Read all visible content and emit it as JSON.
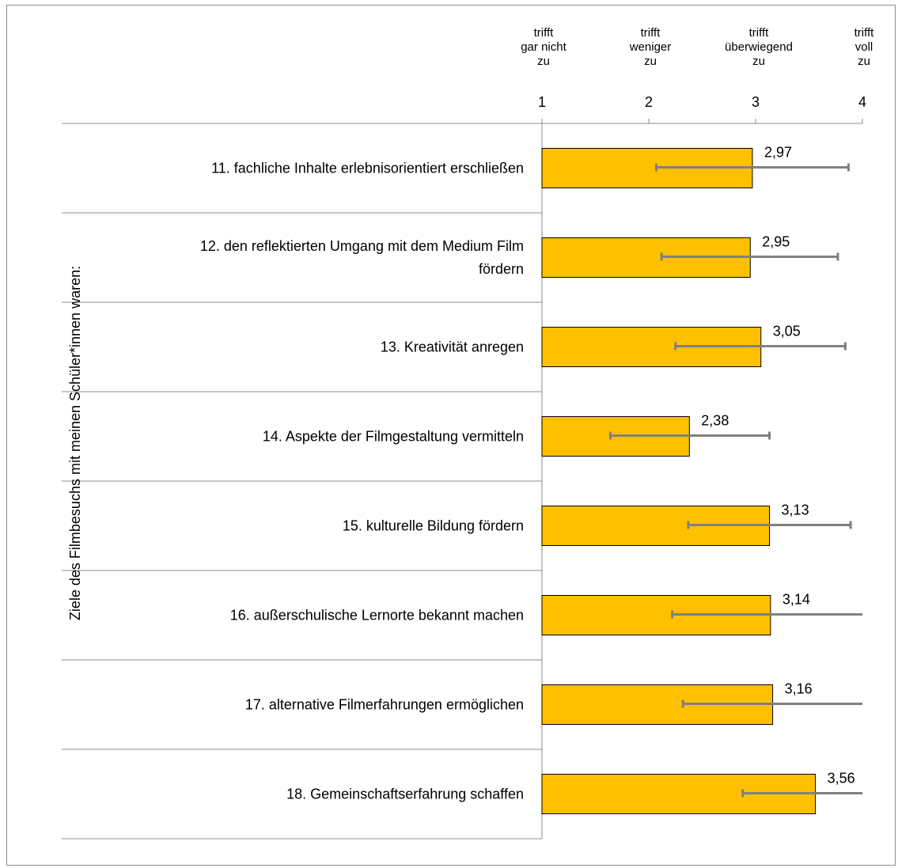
{
  "chart_data": {
    "type": "bar",
    "orientation": "horizontal",
    "group_label": "Ziele des Filmbesuchs mit meinen Schüler*innen waren:",
    "scale_labels": [
      {
        "value": 1,
        "lines": [
          "trifft",
          "gar nicht",
          "zu"
        ]
      },
      {
        "value": 2,
        "lines": [
          "trifft",
          "weniger",
          "zu"
        ]
      },
      {
        "value": 3,
        "lines": [
          "trifft",
          "überwiegend",
          "zu"
        ]
      },
      {
        "value": 4,
        "lines": [
          "trifft",
          "voll",
          "zu"
        ]
      }
    ],
    "ticks": [
      1,
      2,
      3,
      4
    ],
    "xlim": [
      1,
      4
    ],
    "categories": [
      {
        "lines": [
          "11. fachliche Inhalte erlebnisorientiert erschließen"
        ]
      },
      {
        "lines": [
          "12. den reflektierten Umgang mit dem Medium Film",
          "fördern"
        ]
      },
      {
        "lines": [
          "13. Kreativität anregen"
        ]
      },
      {
        "lines": [
          "14. Aspekte der Filmgestaltung vermitteln"
        ]
      },
      {
        "lines": [
          "15. kulturelle Bildung fördern"
        ]
      },
      {
        "lines": [
          "16. außerschulische Lernorte bekannt machen"
        ]
      },
      {
        "lines": [
          "17. alternative Filmerfahrungen ermöglichen"
        ]
      },
      {
        "lines": [
          "18. Gemeinschaftserfahrung schaffen"
        ]
      }
    ],
    "values": [
      2.97,
      2.95,
      3.05,
      2.38,
      3.13,
      3.14,
      3.16,
      3.56
    ],
    "value_labels": [
      "2,97",
      "2,95",
      "3,05",
      "2,38",
      "3,13",
      "3,14",
      "3,16",
      "3,56"
    ],
    "error_bars": [
      {
        "low": 2.07,
        "high": 3.87
      },
      {
        "low": 2.12,
        "high": 3.77
      },
      {
        "low": 2.25,
        "high": 3.84
      },
      {
        "low": 1.64,
        "high": 3.13
      },
      {
        "low": 2.37,
        "high": 3.89
      },
      {
        "low": 2.22,
        "high": 4.0
      },
      {
        "low": 2.32,
        "high": 4.0
      },
      {
        "low": 2.88,
        "high": 4.0
      }
    ],
    "colors": {
      "bar": "#ffc000",
      "bar_border": "#000000",
      "error_bar": "#808080",
      "gridline": "#8c8c8c"
    }
  }
}
